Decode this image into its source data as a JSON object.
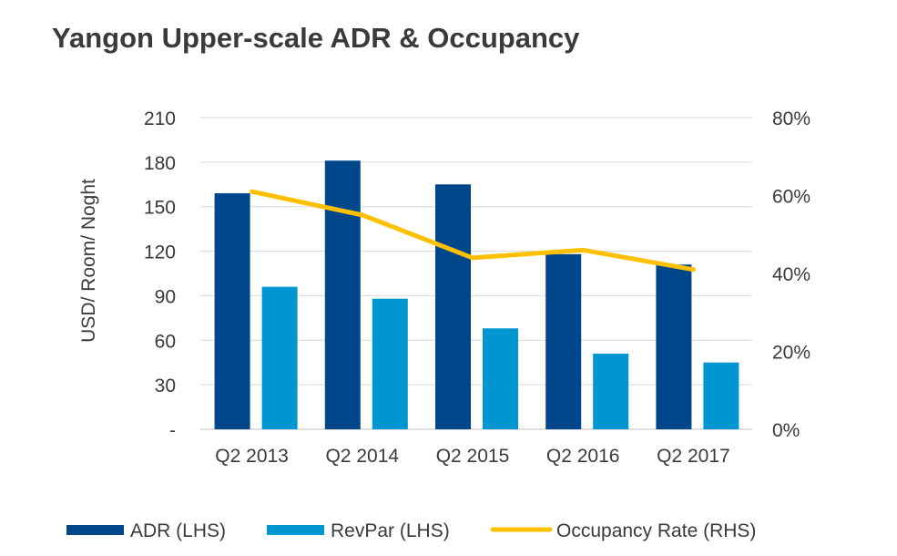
{
  "chart_data": {
    "type": "bar",
    "title": "Yangon Upper-scale ADR & Occupancy",
    "ylabel": "USD/ Room/ Noght",
    "y2label": "",
    "categories": [
      "Q2 2013",
      "Q2 2014",
      "Q2 2015",
      "Q2 2016",
      "Q2 2017"
    ],
    "ylim": [
      0,
      210
    ],
    "y_ticks": [
      "-",
      "30",
      "60",
      "90",
      "120",
      "150",
      "180",
      "210"
    ],
    "y2lim": [
      0,
      80
    ],
    "y2_ticks": [
      "0%",
      "20%",
      "40%",
      "60%",
      "80%"
    ],
    "grid": true,
    "legend_position": "bottom",
    "series": [
      {
        "name": "ADR (LHS)",
        "kind": "bar",
        "axis": "left",
        "color": "#00468b",
        "values": [
          159,
          181,
          165,
          118,
          111
        ]
      },
      {
        "name": "RevPar (LHS)",
        "kind": "bar",
        "axis": "left",
        "color": "#0096d2",
        "values": [
          96,
          88,
          68,
          51,
          45
        ]
      },
      {
        "name": "Occupancy Rate (RHS)",
        "kind": "line",
        "axis": "right",
        "color": "#ffc000",
        "values": [
          61,
          55,
          44,
          46,
          41
        ]
      }
    ]
  }
}
